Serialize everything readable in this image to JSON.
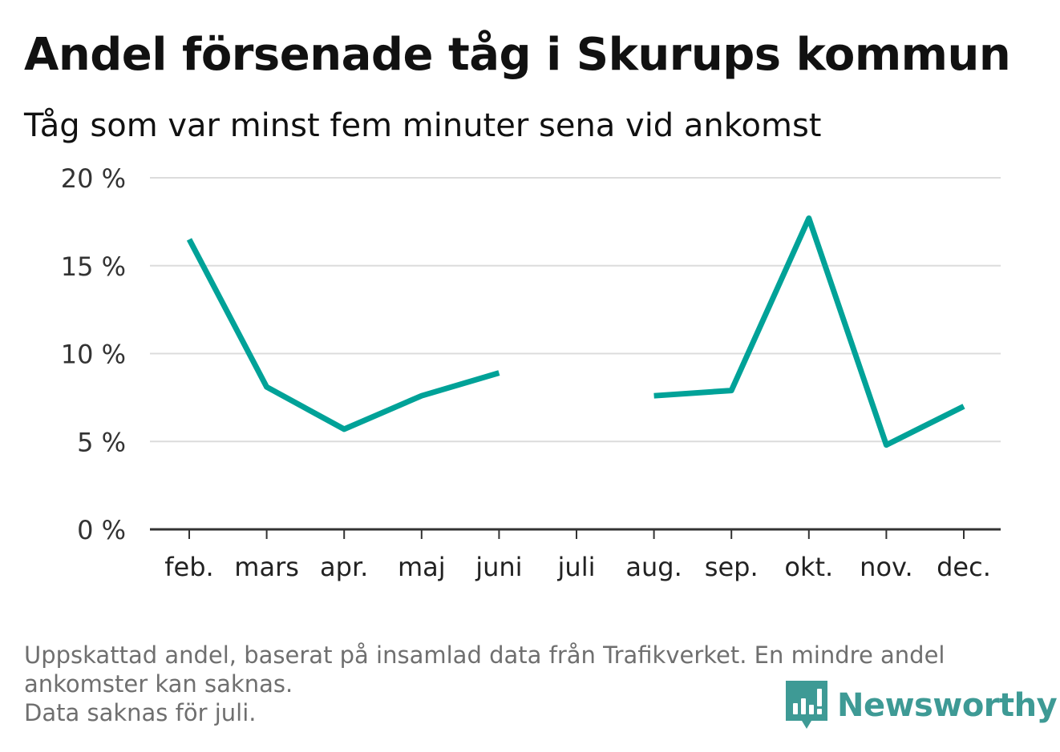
{
  "header": {
    "title": "Andel försenade tåg i Skurups kommun",
    "subtitle": "Tåg som var minst fem minuter sena vid ankomst"
  },
  "chart_data": {
    "type": "line",
    "title": "Andel försenade tåg i Skurups kommun",
    "subtitle": "Tåg som var minst fem minuter sena vid ankomst",
    "categories": [
      "feb.",
      "mars",
      "apr.",
      "maj",
      "juni",
      "juli",
      "aug.",
      "sep.",
      "okt.",
      "nov.",
      "dec."
    ],
    "series": [
      {
        "values": [
          16.5,
          8.1,
          5.7,
          7.6,
          8.9,
          null,
          7.6,
          7.9,
          17.7,
          4.8,
          7.0
        ]
      }
    ],
    "yticks": [
      "0 %",
      "5 %",
      "10 %",
      "15 %",
      "20 %"
    ],
    "ylim": [
      0,
      20
    ],
    "grid": true,
    "line_color": "#00a298"
  },
  "footer": {
    "note_line1": "Uppskattad andel, baserat på insamlad data från Trafikverket. En mindre andel",
    "note_line2": "ankomster kan saknas.",
    "note_line3": "Data saknas för juli.",
    "brand": "Newsworthy",
    "brand_icon": "newsworthy-logo-icon",
    "brand_color": "#3e9a95"
  }
}
